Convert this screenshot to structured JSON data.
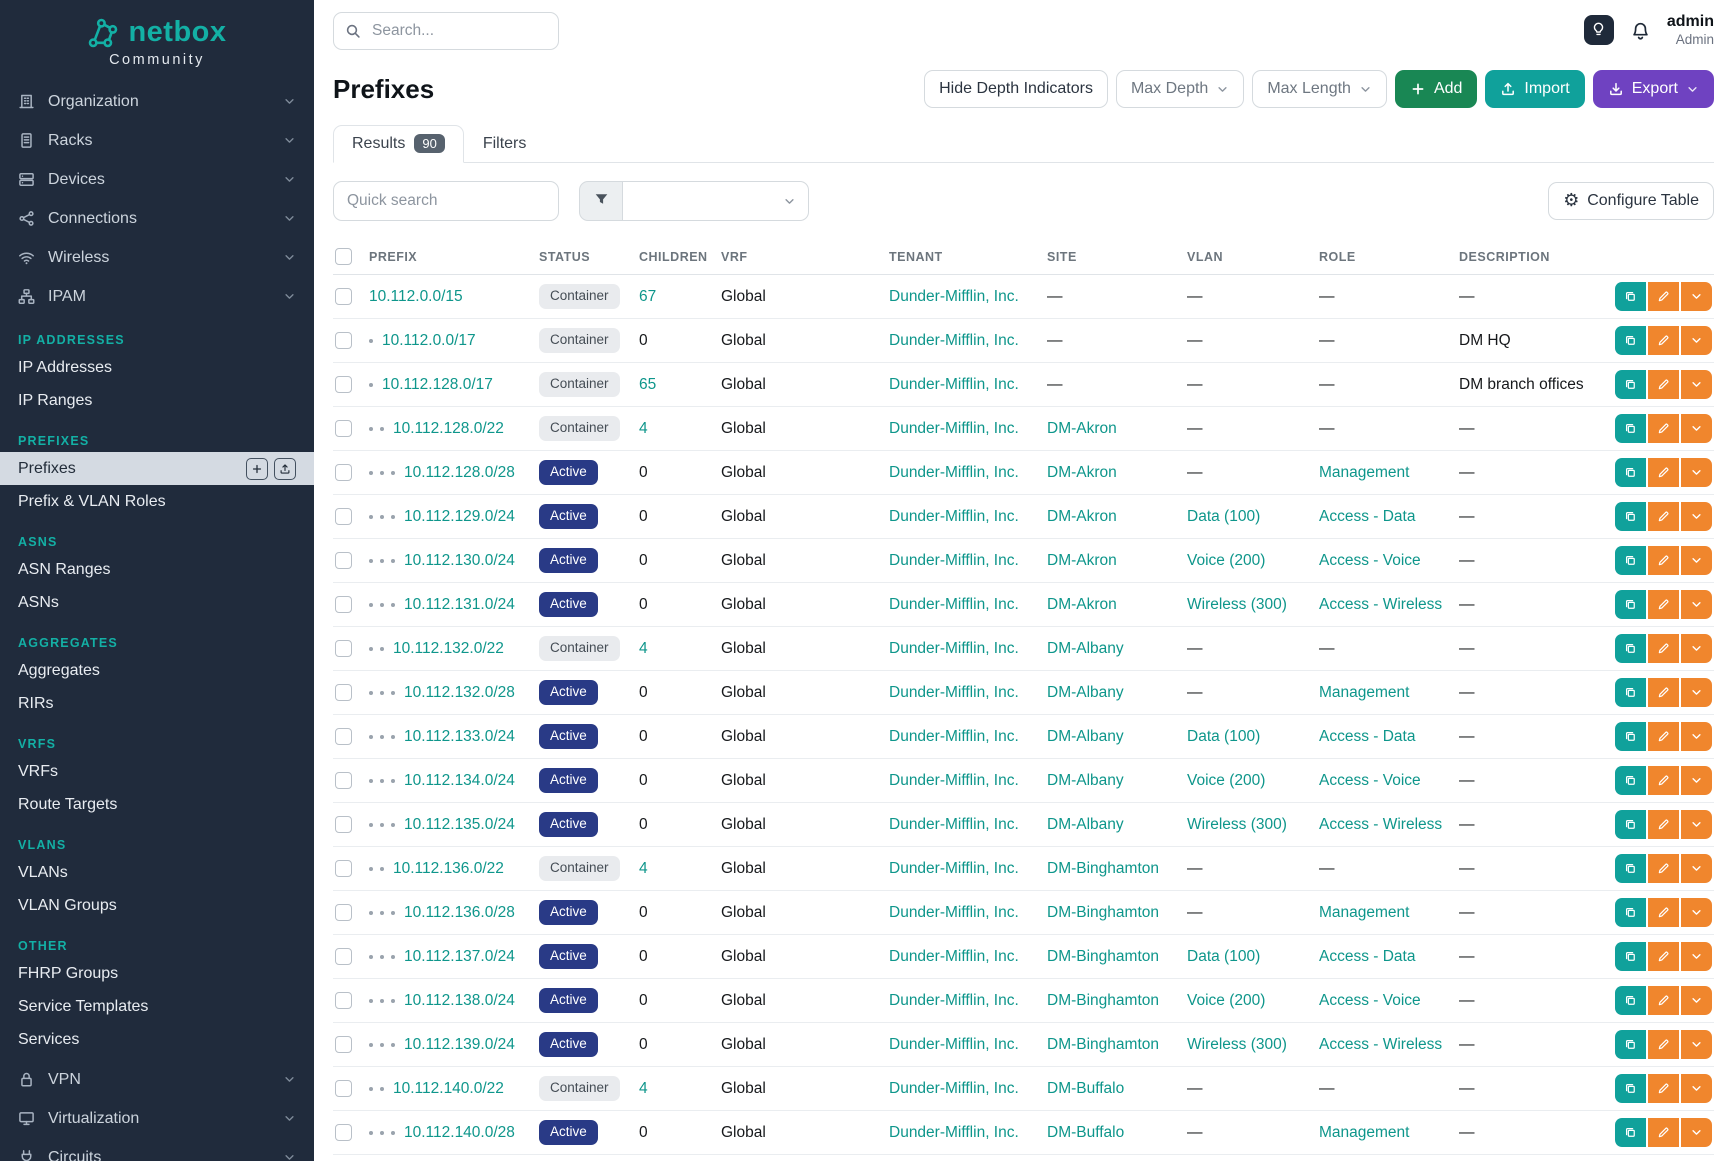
{
  "colors": {
    "sidebar_bg": "#202b3c",
    "brand_teal": "#13b0a5",
    "teal": "#10a19b",
    "teal_link": "#0e968b",
    "green": "#198754",
    "purple": "#6f42c1",
    "orange": "#f0862d",
    "status_active": "#293a86",
    "container_badge_bg": "#e9ebee",
    "container_badge_text": "#454d55"
  },
  "sidebar": {
    "logo": {
      "name": "netbox",
      "subtitle": "Community"
    },
    "top_items": [
      {
        "label": "Organization",
        "icon": "building-icon"
      },
      {
        "label": "Racks",
        "icon": "rack-icon"
      },
      {
        "label": "Devices",
        "icon": "devices-icon"
      },
      {
        "label": "Connections",
        "icon": "connections-icon"
      },
      {
        "label": "Wireless",
        "icon": "wifi-icon"
      },
      {
        "label": "IPAM",
        "icon": "ipam-icon",
        "expanded": true
      }
    ],
    "ipam_sections": [
      {
        "heading": "IP ADDRESSES",
        "items": [
          {
            "label": "IP Addresses"
          },
          {
            "label": "IP Ranges"
          }
        ]
      },
      {
        "heading": "PREFIXES",
        "items": [
          {
            "label": "Prefixes",
            "active": true
          },
          {
            "label": "Prefix & VLAN Roles"
          }
        ]
      },
      {
        "heading": "ASNS",
        "items": [
          {
            "label": "ASN Ranges"
          },
          {
            "label": "ASNs"
          }
        ]
      },
      {
        "heading": "AGGREGATES",
        "items": [
          {
            "label": "Aggregates"
          },
          {
            "label": "RIRs"
          }
        ]
      },
      {
        "heading": "VRFS",
        "items": [
          {
            "label": "VRFs"
          },
          {
            "label": "Route Targets"
          }
        ]
      },
      {
        "heading": "VLANS",
        "items": [
          {
            "label": "VLANs"
          },
          {
            "label": "VLAN Groups"
          }
        ]
      },
      {
        "heading": "OTHER",
        "items": [
          {
            "label": "FHRP Groups"
          },
          {
            "label": "Service Templates"
          },
          {
            "label": "Services"
          }
        ]
      }
    ],
    "bottom_items": [
      {
        "label": "VPN",
        "icon": "vpn-icon"
      },
      {
        "label": "Virtualization",
        "icon": "virtualization-icon"
      },
      {
        "label": "Circuits",
        "icon": "circuits-icon"
      }
    ]
  },
  "topbar": {
    "search_placeholder": "Search...",
    "user_name": "admin",
    "user_role": "Admin"
  },
  "page": {
    "title": "Prefixes",
    "buttons": {
      "hide_depth": "Hide Depth Indicators",
      "max_depth": "Max Depth",
      "max_length": "Max Length",
      "add": "Add",
      "import": "Import",
      "export": "Export"
    },
    "tabs": [
      {
        "label": "Results",
        "badge": "90",
        "active": true
      },
      {
        "label": "Filters",
        "active": false
      }
    ],
    "quick_search_placeholder": "Quick search",
    "configure_table": "Configure Table"
  },
  "table": {
    "columns": [
      {
        "key": "select",
        "label": ""
      },
      {
        "key": "prefix",
        "label": "PREFIX"
      },
      {
        "key": "status",
        "label": "STATUS"
      },
      {
        "key": "children",
        "label": "CHILDREN"
      },
      {
        "key": "vrf",
        "label": "VRF"
      },
      {
        "key": "tenant",
        "label": "TENANT"
      },
      {
        "key": "site",
        "label": "SITE"
      },
      {
        "key": "vlan",
        "label": "VLAN"
      },
      {
        "key": "role",
        "label": "ROLE"
      },
      {
        "key": "description",
        "label": "DESCRIPTION"
      },
      {
        "key": "actions",
        "label": ""
      }
    ],
    "rows": [
      {
        "depth": 0,
        "prefix": "10.112.0.0/15",
        "status": "Container",
        "children": "67",
        "vrf": "Global",
        "tenant": "Dunder-Mifflin, Inc.",
        "site": "—",
        "vlan": "—",
        "role": "—",
        "description": "—"
      },
      {
        "depth": 1,
        "prefix": "10.112.0.0/17",
        "status": "Container",
        "children": "0",
        "vrf": "Global",
        "tenant": "Dunder-Mifflin, Inc.",
        "site": "—",
        "vlan": "—",
        "role": "—",
        "description": "DM HQ"
      },
      {
        "depth": 1,
        "prefix": "10.112.128.0/17",
        "status": "Container",
        "children": "65",
        "vrf": "Global",
        "tenant": "Dunder-Mifflin, Inc.",
        "site": "—",
        "vlan": "—",
        "role": "—",
        "description": "DM branch offices"
      },
      {
        "depth": 2,
        "prefix": "10.112.128.0/22",
        "status": "Container",
        "children": "4",
        "vrf": "Global",
        "tenant": "Dunder-Mifflin, Inc.",
        "site": "DM-Akron",
        "vlan": "—",
        "role": "—",
        "description": "—"
      },
      {
        "depth": 3,
        "prefix": "10.112.128.0/28",
        "status": "Active",
        "children": "0",
        "vrf": "Global",
        "tenant": "Dunder-Mifflin, Inc.",
        "site": "DM-Akron",
        "vlan": "—",
        "role": "Management",
        "description": "—"
      },
      {
        "depth": 3,
        "prefix": "10.112.129.0/24",
        "status": "Active",
        "children": "0",
        "vrf": "Global",
        "tenant": "Dunder-Mifflin, Inc.",
        "site": "DM-Akron",
        "vlan": "Data (100)",
        "role": "Access - Data",
        "description": "—"
      },
      {
        "depth": 3,
        "prefix": "10.112.130.0/24",
        "status": "Active",
        "children": "0",
        "vrf": "Global",
        "tenant": "Dunder-Mifflin, Inc.",
        "site": "DM-Akron",
        "vlan": "Voice (200)",
        "role": "Access - Voice",
        "description": "—"
      },
      {
        "depth": 3,
        "prefix": "10.112.131.0/24",
        "status": "Active",
        "children": "0",
        "vrf": "Global",
        "tenant": "Dunder-Mifflin, Inc.",
        "site": "DM-Akron",
        "vlan": "Wireless (300)",
        "role": "Access - Wireless",
        "description": "—"
      },
      {
        "depth": 2,
        "prefix": "10.112.132.0/22",
        "status": "Container",
        "children": "4",
        "vrf": "Global",
        "tenant": "Dunder-Mifflin, Inc.",
        "site": "DM-Albany",
        "vlan": "—",
        "role": "—",
        "description": "—"
      },
      {
        "depth": 3,
        "prefix": "10.112.132.0/28",
        "status": "Active",
        "children": "0",
        "vrf": "Global",
        "tenant": "Dunder-Mifflin, Inc.",
        "site": "DM-Albany",
        "vlan": "—",
        "role": "Management",
        "description": "—"
      },
      {
        "depth": 3,
        "prefix": "10.112.133.0/24",
        "status": "Active",
        "children": "0",
        "vrf": "Global",
        "tenant": "Dunder-Mifflin, Inc.",
        "site": "DM-Albany",
        "vlan": "Data (100)",
        "role": "Access - Data",
        "description": "—"
      },
      {
        "depth": 3,
        "prefix": "10.112.134.0/24",
        "status": "Active",
        "children": "0",
        "vrf": "Global",
        "tenant": "Dunder-Mifflin, Inc.",
        "site": "DM-Albany",
        "vlan": "Voice (200)",
        "role": "Access - Voice",
        "description": "—"
      },
      {
        "depth": 3,
        "prefix": "10.112.135.0/24",
        "status": "Active",
        "children": "0",
        "vrf": "Global",
        "tenant": "Dunder-Mifflin, Inc.",
        "site": "DM-Albany",
        "vlan": "Wireless (300)",
        "role": "Access - Wireless",
        "description": "—"
      },
      {
        "depth": 2,
        "prefix": "10.112.136.0/22",
        "status": "Container",
        "children": "4",
        "vrf": "Global",
        "tenant": "Dunder-Mifflin, Inc.",
        "site": "DM-Binghamton",
        "vlan": "—",
        "role": "—",
        "description": "—"
      },
      {
        "depth": 3,
        "prefix": "10.112.136.0/28",
        "status": "Active",
        "children": "0",
        "vrf": "Global",
        "tenant": "Dunder-Mifflin, Inc.",
        "site": "DM-Binghamton",
        "vlan": "—",
        "role": "Management",
        "description": "—"
      },
      {
        "depth": 3,
        "prefix": "10.112.137.0/24",
        "status": "Active",
        "children": "0",
        "vrf": "Global",
        "tenant": "Dunder-Mifflin, Inc.",
        "site": "DM-Binghamton",
        "vlan": "Data (100)",
        "role": "Access - Data",
        "description": "—"
      },
      {
        "depth": 3,
        "prefix": "10.112.138.0/24",
        "status": "Active",
        "children": "0",
        "vrf": "Global",
        "tenant": "Dunder-Mifflin, Inc.",
        "site": "DM-Binghamton",
        "vlan": "Voice (200)",
        "role": "Access - Voice",
        "description": "—"
      },
      {
        "depth": 3,
        "prefix": "10.112.139.0/24",
        "status": "Active",
        "children": "0",
        "vrf": "Global",
        "tenant": "Dunder-Mifflin, Inc.",
        "site": "DM-Binghamton",
        "vlan": "Wireless (300)",
        "role": "Access - Wireless",
        "description": "—"
      },
      {
        "depth": 2,
        "prefix": "10.112.140.0/22",
        "status": "Container",
        "children": "4",
        "vrf": "Global",
        "tenant": "Dunder-Mifflin, Inc.",
        "site": "DM-Buffalo",
        "vlan": "—",
        "role": "—",
        "description": "—"
      },
      {
        "depth": 3,
        "prefix": "10.112.140.0/28",
        "status": "Active",
        "children": "0",
        "vrf": "Global",
        "tenant": "Dunder-Mifflin, Inc.",
        "site": "DM-Buffalo",
        "vlan": "—",
        "role": "Management",
        "description": "—"
      }
    ]
  }
}
